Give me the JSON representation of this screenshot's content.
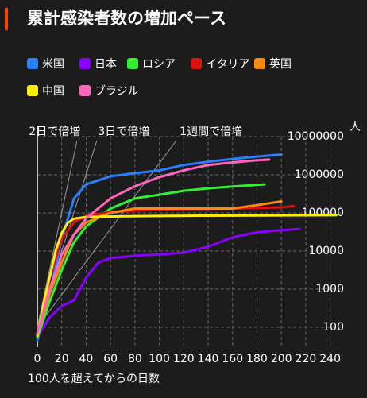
{
  "chart_data": {
    "type": "line",
    "title": "累計感染者数の増加ペース",
    "x_label": "100人を超えてからの日数",
    "y_unit": "人",
    "log_y": true,
    "grid": true,
    "xlim": [
      0,
      250
    ],
    "ylim": [
      30,
      10000000
    ],
    "xticks": [
      0,
      20,
      40,
      60,
      80,
      100,
      120,
      140,
      160,
      180,
      200,
      220,
      240
    ],
    "yticks": [
      100,
      1000,
      10000,
      100000,
      1000000,
      10000000
    ],
    "reference_lines": [
      {
        "label": "2日で倍増",
        "doubling_days": 2
      },
      {
        "label": "3日で倍増",
        "doubling_days": 3
      },
      {
        "label": "1週間で倍増",
        "doubling_days": 7
      }
    ],
    "series": [
      {
        "name": "米国",
        "color": "#2a7fff",
        "x": [
          0,
          10,
          20,
          30,
          40,
          60,
          80,
          100,
          120,
          140,
          160,
          180,
          200
        ],
        "values": [
          45,
          750,
          21000,
          237000,
          560000,
          910000,
          1100000,
          1300000,
          1800000,
          2200000,
          2600000,
          3000000,
          3400000
        ]
      },
      {
        "name": "日本",
        "color": "#8800ff",
        "x": [
          0,
          10,
          20,
          30,
          40,
          50,
          60,
          80,
          100,
          120,
          140,
          160,
          180,
          200,
          215
        ],
        "values": [
          55,
          180,
          360,
          510,
          2000,
          5000,
          6500,
          7500,
          8200,
          9000,
          13000,
          23000,
          31000,
          35000,
          38000
        ]
      },
      {
        "name": "ロシア",
        "color": "#33ee33",
        "x": [
          0,
          10,
          20,
          30,
          40,
          60,
          80,
          100,
          120,
          140,
          160,
          180,
          186
        ],
        "values": [
          53,
          460,
          3200,
          17000,
          44000,
          130000,
          240000,
          300000,
          380000,
          440000,
          490000,
          540000,
          560000
        ]
      },
      {
        "name": "イタリア",
        "color": "#dd1111",
        "x": [
          0,
          10,
          20,
          30,
          40,
          60,
          80,
          120,
          160,
          200,
          210
        ],
        "values": [
          68,
          1950,
          21000,
          56000,
          83000,
          105000,
          115000,
          125000,
          130000,
          140000,
          150000
        ]
      },
      {
        "name": "英国",
        "color": "#ff8811",
        "x": [
          0,
          10,
          20,
          30,
          40,
          60,
          80,
          120,
          160,
          180,
          200
        ],
        "values": [
          68,
          750,
          5000,
          27000,
          56000,
          100000,
          130000,
          130000,
          130000,
          160000,
          200000
        ]
      },
      {
        "name": "中国",
        "color": "#ffee00",
        "x": [
          0,
          5,
          10,
          15,
          20,
          25,
          30,
          40,
          80,
          120,
          160,
          200,
          245
        ],
        "values": [
          60,
          400,
          2000,
          10000,
          30000,
          55000,
          70000,
          78000,
          82000,
          84000,
          85000,
          86000,
          87000
        ]
      },
      {
        "name": "ブラジル",
        "color": "#ff66bb",
        "x": [
          0,
          10,
          20,
          30,
          40,
          60,
          80,
          100,
          120,
          140,
          160,
          180,
          190
        ],
        "values": [
          68,
          1000,
          8000,
          27000,
          72000,
          240000,
          500000,
          870000,
          1300000,
          1800000,
          2100000,
          2400000,
          2500000
        ]
      }
    ]
  }
}
